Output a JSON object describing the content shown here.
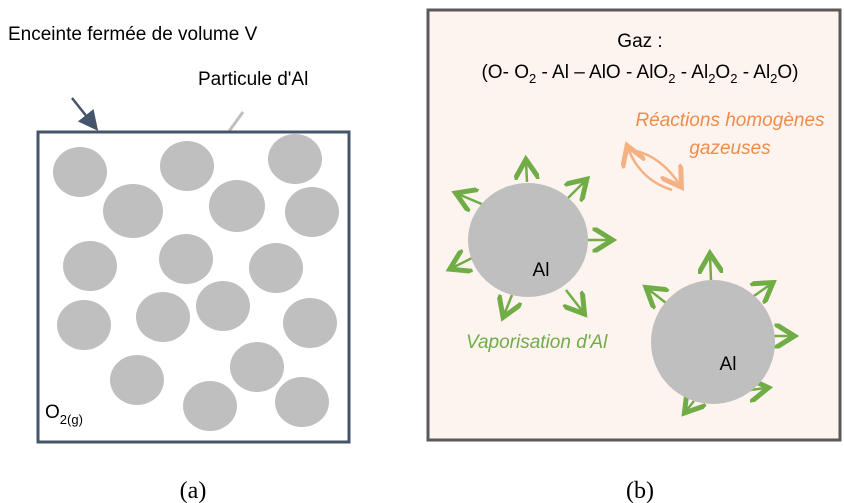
{
  "panel_a": {
    "enclosure_label": "Enceinte fermée de volume V",
    "particle_label": "Particule d'Al",
    "gas_label": [
      "O",
      "2(g)"
    ],
    "caption": "(a)"
  },
  "panel_b": {
    "gas_title": "Gaz :",
    "gas_species": [
      "(O- O",
      "2",
      " - Al – AlO - AlO",
      "2",
      " - Al",
      "2",
      "O",
      "2",
      " - Al",
      "2",
      "O)"
    ],
    "reactions_label": [
      "Réactions homogènes",
      "gazeuses"
    ],
    "vaporisation_label": "Vaporisation d'Al",
    "particles": [
      "Al",
      "Al"
    ],
    "caption": "(b)"
  }
}
